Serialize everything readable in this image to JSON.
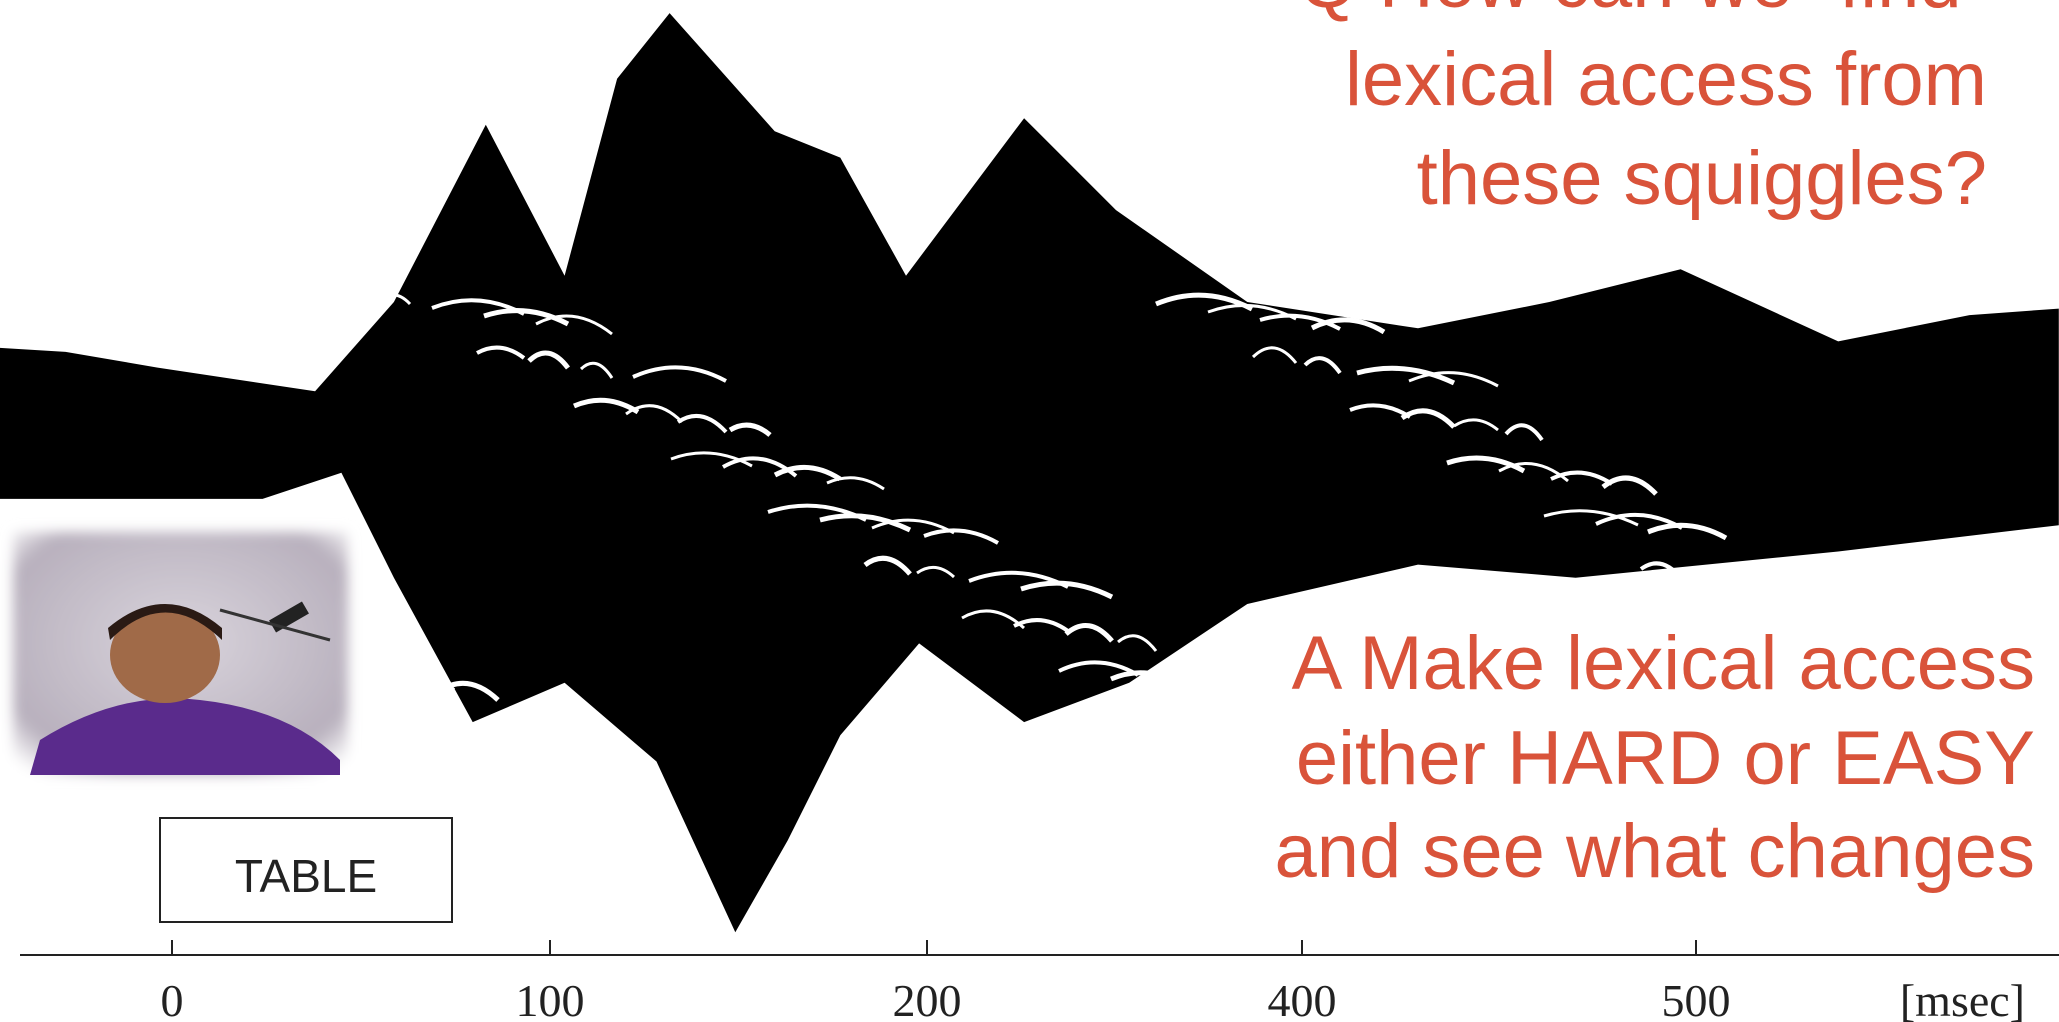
{
  "question": {
    "lines": [
      "Q How can we “find”",
      "lexical access from",
      "these squiggles?"
    ]
  },
  "answer": {
    "lines": [
      "A  Make lexical access",
      "either HARD or EASY",
      "and see what changes"
    ]
  },
  "table_label": "TABLE",
  "axis": {
    "ticks": [
      "0",
      "100",
      "200",
      "400",
      "500"
    ],
    "unit": "[msec]"
  }
}
